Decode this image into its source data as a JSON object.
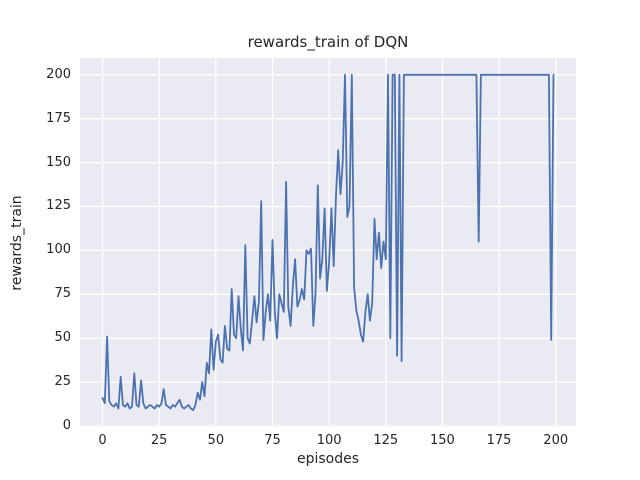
{
  "colors": {
    "figure_background": "#FFFFFF",
    "axes_background": "#EAEAF2",
    "grid": "#FFFFFF",
    "line": "#4C72B0",
    "text": "#262626"
  },
  "chart_data": {
    "type": "line",
    "title": "rewards_train of DQN",
    "xlabel": "episodes",
    "ylabel": "rewards_train",
    "legend": "none",
    "grid": true,
    "xlim": [
      -9.95,
      208.95
    ],
    "ylim": [
      -0.55,
      209.55
    ],
    "xticks": [
      0,
      25,
      50,
      75,
      100,
      125,
      150,
      175,
      200
    ],
    "yticks": [
      0,
      25,
      50,
      75,
      100,
      125,
      150,
      175,
      200
    ],
    "x_start": 0,
    "x_step": 1,
    "series": [
      {
        "name": "rewards_train",
        "color": "#4C72B0",
        "values": [
          16,
          13,
          51,
          14,
          12,
          11,
          13,
          10,
          28,
          12,
          11,
          13,
          10,
          11,
          30,
          12,
          11,
          26,
          13,
          10,
          11,
          12,
          11,
          10,
          12,
          11,
          13,
          21,
          12,
          11,
          10,
          12,
          11,
          13,
          15,
          11,
          10,
          11,
          12,
          10,
          9,
          12,
          19,
          15,
          25,
          17,
          36,
          30,
          55,
          32,
          48,
          52,
          38,
          36,
          57,
          44,
          43,
          78,
          52,
          50,
          74,
          55,
          43,
          103,
          50,
          47,
          60,
          74,
          59,
          71,
          128,
          49,
          65,
          75,
          60,
          106,
          65,
          50,
          75,
          70,
          65,
          139,
          68,
          57,
          80,
          95,
          68,
          72,
          78,
          72,
          100,
          98,
          101,
          57,
          75,
          137,
          84,
          95,
          124,
          77,
          93,
          124,
          91,
          130,
          157,
          132,
          150,
          200,
          119,
          125,
          200,
          79,
          66,
          60,
          52,
          48,
          65,
          75,
          60,
          70,
          118,
          95,
          110,
          90,
          105,
          95,
          200,
          50,
          200,
          200,
          40,
          200,
          37,
          200,
          200,
          200,
          200,
          200,
          200,
          200,
          200,
          200,
          200,
          200,
          200,
          200,
          200,
          200,
          200,
          200,
          200,
          200,
          200,
          200,
          200,
          200,
          200,
          200,
          200,
          200,
          200,
          200,
          200,
          200,
          200,
          200,
          105,
          200,
          200,
          200,
          200,
          200,
          200,
          200,
          200,
          200,
          200,
          200,
          200,
          200,
          200,
          200,
          200,
          200,
          200,
          200,
          200,
          200,
          200,
          200,
          200,
          200,
          200,
          200,
          200,
          200,
          200,
          200,
          49,
          200
        ]
      }
    ]
  }
}
